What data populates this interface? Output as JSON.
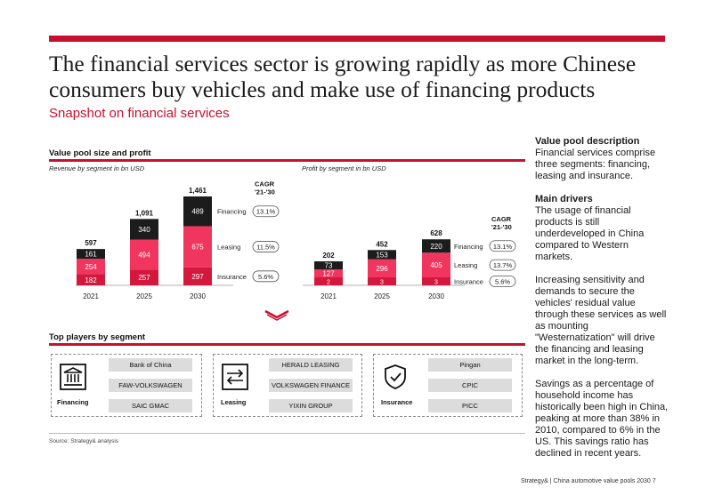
{
  "page": {
    "title_line1": "The financial services sector is growing rapidly as more Chinese",
    "title_line2": "consumers buy vehicles and make use of financing products",
    "subtitle": "Snapshot on financial services",
    "accent_color": "#c8102e"
  },
  "value_pool": {
    "heading": "Value pool size and profit",
    "revenue_sub": "Revenue by segment in bn USD",
    "profit_sub": "Profit by segment in bn USD",
    "cagr_header_line1": "CAGR",
    "cagr_header_line2": "'21-'30"
  },
  "chart_data": [
    {
      "type": "bar",
      "stacked": true,
      "subtitle": "Revenue by segment in bn USD",
      "categories": [
        "2021",
        "2025",
        "2030"
      ],
      "series": [
        {
          "name": "Insurance",
          "values": [
            182,
            257,
            297
          ],
          "color": "#d4183d",
          "cagr": "5.6%"
        },
        {
          "name": "Leasing",
          "values": [
            254,
            494,
            675
          ],
          "color": "#f0365f",
          "cagr": "11.5%"
        },
        {
          "name": "Financing",
          "values": [
            161,
            340,
            489
          ],
          "color": "#1c1c1c",
          "cagr": "13.1%"
        }
      ],
      "totals": [
        "597",
        "1,091",
        "1,461"
      ],
      "ylim": [
        0,
        1461
      ]
    },
    {
      "type": "bar",
      "stacked": true,
      "subtitle": "Profit by segment in bn USD",
      "categories": [
        "2021",
        "2025",
        "2030"
      ],
      "series": [
        {
          "name": "Insurance",
          "values": [
            2,
            3,
            3
          ],
          "color": "#d4183d",
          "cagr": "5.6%"
        },
        {
          "name": "Leasing",
          "values": [
            127,
            296,
            405
          ],
          "color": "#f0365f",
          "cagr": "13.7%"
        },
        {
          "name": "Financing",
          "values": [
            73,
            153,
            220
          ],
          "color": "#1c1c1c",
          "cagr": "13.1%"
        }
      ],
      "totals": [
        "202",
        "452",
        "628"
      ],
      "ylim": [
        0,
        1461
      ]
    }
  ],
  "description": {
    "h1": "Value pool description",
    "p1": "Financial services comprise three segments: financing, leasing and insurance.",
    "h2": "Main drivers",
    "p2": "The usage of financial products is still underdeveloped in China compared to Western markets.",
    "p3": "Increasing sensitivity and demands to secure the vehicles' residual value through these services as well as mounting \"Westernatization\" will drive the financing and leasing market in the long-term.",
    "p4": "Savings as a percentage of household income has historically been high in China, peaking at more than 38% in 2010, compared to 6% in the US. This savings ratio has declined in recent years."
  },
  "players": {
    "heading": "Top players by segment",
    "segments": [
      {
        "label": "Financing",
        "icon": "bank-icon",
        "items": [
          "Bank of China",
          "FAW-VOLKSWAGEN",
          "SAIC GMAC"
        ]
      },
      {
        "label": "Leasing",
        "icon": "transfer-arrows-icon",
        "items": [
          "HERALD LEASING",
          "VOLKSWAGEN FINANCE",
          "YIXIN GROUP"
        ]
      },
      {
        "label": "Insurance",
        "icon": "shield-check-icon",
        "items": [
          "Pingan",
          "CPIC",
          "PICC"
        ]
      }
    ]
  },
  "source": "Source: Strategy& analysis",
  "footer": "Strategy&   |   China automotive value pools 2030     7"
}
